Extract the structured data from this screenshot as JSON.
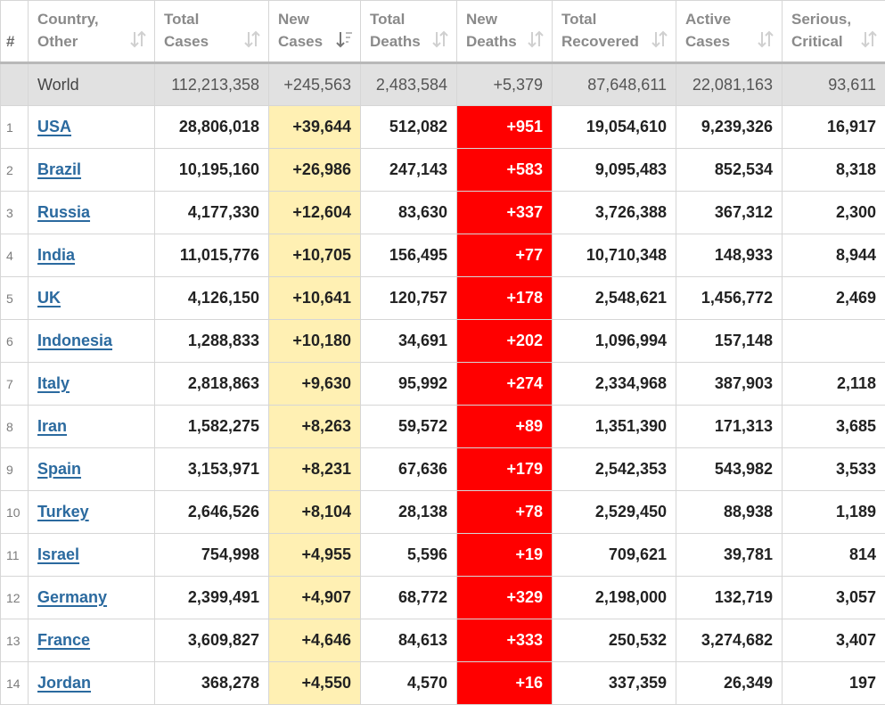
{
  "table": {
    "headers": {
      "rank": "#",
      "country_l1": "Country,",
      "country_l2": "Other",
      "total_cases_l1": "Total",
      "total_cases_l2": "Cases",
      "new_cases_l1": "New",
      "new_cases_l2": "Cases",
      "total_deaths_l1": "Total",
      "total_deaths_l2": "Deaths",
      "new_deaths_l1": "New",
      "new_deaths_l2": "Deaths",
      "total_recovered_l1": "Total",
      "total_recovered_l2": "Recovered",
      "active_cases_l1": "Active",
      "active_cases_l2": "Cases",
      "serious_l1": "Serious,",
      "serious_l2": "Critical"
    },
    "world": {
      "country": "World",
      "total_cases": "112,213,358",
      "new_cases": "+245,563",
      "total_deaths": "2,483,584",
      "new_deaths": "+5,379",
      "total_recovered": "87,648,611",
      "active_cases": "22,081,163",
      "serious": "93,611"
    },
    "rows": [
      {
        "rank": "1",
        "country": "USA",
        "total_cases": "28,806,018",
        "new_cases": "+39,644",
        "total_deaths": "512,082",
        "new_deaths": "+951",
        "total_recovered": "19,054,610",
        "active_cases": "9,239,326",
        "serious": "16,917"
      },
      {
        "rank": "2",
        "country": "Brazil",
        "total_cases": "10,195,160",
        "new_cases": "+26,986",
        "total_deaths": "247,143",
        "new_deaths": "+583",
        "total_recovered": "9,095,483",
        "active_cases": "852,534",
        "serious": "8,318"
      },
      {
        "rank": "3",
        "country": "Russia",
        "total_cases": "4,177,330",
        "new_cases": "+12,604",
        "total_deaths": "83,630",
        "new_deaths": "+337",
        "total_recovered": "3,726,388",
        "active_cases": "367,312",
        "serious": "2,300"
      },
      {
        "rank": "4",
        "country": "India",
        "total_cases": "11,015,776",
        "new_cases": "+10,705",
        "total_deaths": "156,495",
        "new_deaths": "+77",
        "total_recovered": "10,710,348",
        "active_cases": "148,933",
        "serious": "8,944"
      },
      {
        "rank": "5",
        "country": "UK",
        "total_cases": "4,126,150",
        "new_cases": "+10,641",
        "total_deaths": "120,757",
        "new_deaths": "+178",
        "total_recovered": "2,548,621",
        "active_cases": "1,456,772",
        "serious": "2,469"
      },
      {
        "rank": "6",
        "country": "Indonesia",
        "total_cases": "1,288,833",
        "new_cases": "+10,180",
        "total_deaths": "34,691",
        "new_deaths": "+202",
        "total_recovered": "1,096,994",
        "active_cases": "157,148",
        "serious": ""
      },
      {
        "rank": "7",
        "country": "Italy",
        "total_cases": "2,818,863",
        "new_cases": "+9,630",
        "total_deaths": "95,992",
        "new_deaths": "+274",
        "total_recovered": "2,334,968",
        "active_cases": "387,903",
        "serious": "2,118"
      },
      {
        "rank": "8",
        "country": "Iran",
        "total_cases": "1,582,275",
        "new_cases": "+8,263",
        "total_deaths": "59,572",
        "new_deaths": "+89",
        "total_recovered": "1,351,390",
        "active_cases": "171,313",
        "serious": "3,685"
      },
      {
        "rank": "9",
        "country": "Spain",
        "total_cases": "3,153,971",
        "new_cases": "+8,231",
        "total_deaths": "67,636",
        "new_deaths": "+179",
        "total_recovered": "2,542,353",
        "active_cases": "543,982",
        "serious": "3,533"
      },
      {
        "rank": "10",
        "country": "Turkey",
        "total_cases": "2,646,526",
        "new_cases": "+8,104",
        "total_deaths": "28,138",
        "new_deaths": "+78",
        "total_recovered": "2,529,450",
        "active_cases": "88,938",
        "serious": "1,189"
      },
      {
        "rank": "11",
        "country": "Israel",
        "total_cases": "754,998",
        "new_cases": "+4,955",
        "total_deaths": "5,596",
        "new_deaths": "+19",
        "total_recovered": "709,621",
        "active_cases": "39,781",
        "serious": "814"
      },
      {
        "rank": "12",
        "country": "Germany",
        "total_cases": "2,399,491",
        "new_cases": "+4,907",
        "total_deaths": "68,772",
        "new_deaths": "+329",
        "total_recovered": "2,198,000",
        "active_cases": "132,719",
        "serious": "3,057"
      },
      {
        "rank": "13",
        "country": "France",
        "total_cases": "3,609,827",
        "new_cases": "+4,646",
        "total_deaths": "84,613",
        "new_deaths": "+333",
        "total_recovered": "250,532",
        "active_cases": "3,274,682",
        "serious": "3,407"
      },
      {
        "rank": "14",
        "country": "Jordan",
        "total_cases": "368,278",
        "new_cases": "+4,550",
        "total_deaths": "4,570",
        "new_deaths": "+16",
        "total_recovered": "337,359",
        "active_cases": "26,349",
        "serious": "197"
      }
    ]
  },
  "colors": {
    "new_cases_bg": "#fff0b3",
    "new_deaths_bg": "#ff0000",
    "world_row_bg": "#e1e1e1",
    "link": "#2b6a9f"
  },
  "icons": {
    "sort": "sort-arrows-icon",
    "sort_active": "sort-descending-icon"
  }
}
